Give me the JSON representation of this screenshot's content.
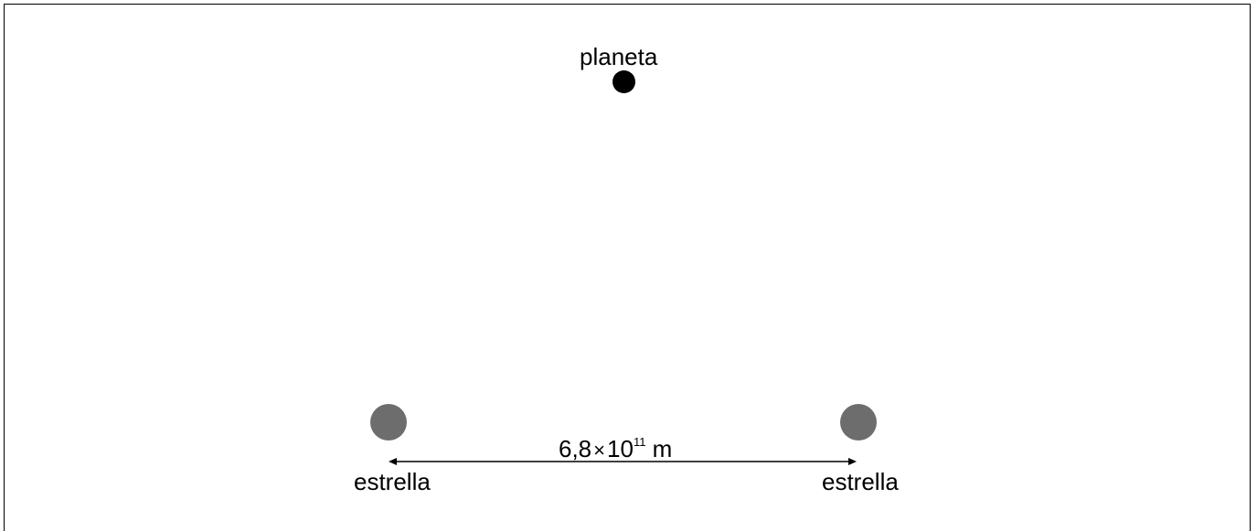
{
  "diagram": {
    "planet_label": "planeta",
    "star_left_label": "estrella",
    "star_right_label": "estrella",
    "distance": {
      "mantissa": "6,8",
      "times": "×",
      "base": "10",
      "exponent": "11",
      "unit": "m"
    },
    "colors": {
      "planet": "#000000",
      "star": "#6d6d6d",
      "frame": "#000000"
    }
  }
}
